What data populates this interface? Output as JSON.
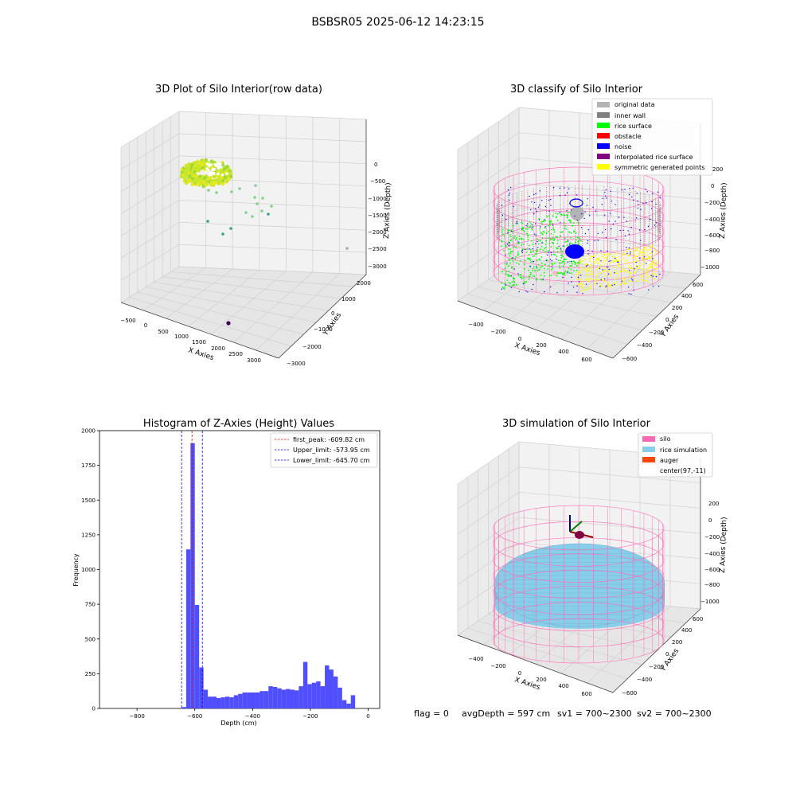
{
  "figure": {
    "suptitle": "BSBSR05 2025-06-12 14:23:15",
    "status_line": {
      "flag": "flag = 0",
      "avg_depth": "avgDepth = 597 cm",
      "sv1": "sv1 = 700~2300",
      "sv2": "sv2 = 700~2300"
    }
  },
  "colors": {
    "original": "#b3b3b3",
    "inner_wall": "#808080",
    "rice_surface": "#00ff00",
    "obstacle": "#ff0000",
    "noise": "#0000ff",
    "interpolated": "#800080",
    "symmetric": "#ffff00",
    "silo": "#ff69b4",
    "rice_sim": "#87ceeb",
    "auger": "#ff4500",
    "hist_bar": "#4f4fff"
  },
  "chart_data": [
    {
      "type": "scatter",
      "title": "3D Plot of Silo Interior(row data)",
      "xlabel": "X Axies",
      "ylabel": "Y Axies",
      "zlabel": "Z Axies (Depth)",
      "x_ticks": [
        "−500",
        "0",
        "500",
        "1000",
        "1500",
        "2000",
        "2500",
        "3000"
      ],
      "y_ticks": [
        "−3000",
        "−2000",
        "−1000",
        "0",
        "1000",
        "2000"
      ],
      "z_ticks": [
        "0",
        "−500",
        "−1000",
        "−1500",
        "−2000",
        "−2500",
        "−3000"
      ],
      "xlim": [
        -600,
        3300
      ],
      "ylim": [
        -3000,
        2500
      ],
      "zlim": [
        -3200,
        100
      ]
    },
    {
      "type": "scatter",
      "title": "3D classify of Silo Interior",
      "xlabel": "X Axies",
      "ylabel": "Y Axies",
      "zlabel": "Z Axies (Depth)",
      "x_ticks": [
        "−400",
        "−200",
        "0",
        "200",
        "400",
        "600"
      ],
      "y_ticks": [
        "−600",
        "−400",
        "−200",
        "0",
        "200",
        "400",
        "600"
      ],
      "z_ticks": [
        "200",
        "0",
        "−200",
        "−400",
        "−600",
        "−800",
        "−1000"
      ],
      "legend_position": "upper-right",
      "legend": [
        {
          "label": "original data",
          "color": "#b3b3b3"
        },
        {
          "label": "inner wall",
          "color": "#808080"
        },
        {
          "label": "rice surface",
          "color": "#00ff00"
        },
        {
          "label": "obstacle",
          "color": "#ff0000"
        },
        {
          "label": "noise",
          "color": "#0000ff"
        },
        {
          "label": "interpolated rice surface",
          "color": "#800080"
        },
        {
          "label": "symmetric generated points",
          "color": "#ffff00"
        }
      ]
    },
    {
      "type": "bar",
      "title": "Histogram of Z-Axies (Height) Values",
      "xlabel": "Depth (cm)",
      "ylabel": "Frequency",
      "xlim": [
        -930,
        40
      ],
      "ylim": [
        0,
        2000
      ],
      "x_ticks": [
        -800,
        -600,
        -400,
        -200,
        0
      ],
      "y_ticks": [
        0,
        250,
        500,
        750,
        1000,
        1250,
        1500,
        1750,
        2000
      ],
      "bin_width": 15,
      "bin_starts": [
        -645,
        -630,
        -615,
        -600,
        -585,
        -570,
        -555,
        -540,
        -525,
        -510,
        -495,
        -480,
        -465,
        -450,
        -435,
        -420,
        -405,
        -390,
        -375,
        -360,
        -345,
        -330,
        -315,
        -300,
        -285,
        -270,
        -255,
        -240,
        -225,
        -210,
        -195,
        -180,
        -165,
        -150,
        -135,
        -120,
        -105,
        -90,
        -75,
        -60,
        -45,
        -30,
        -15
      ],
      "values": [
        10,
        1145,
        1910,
        745,
        295,
        135,
        85,
        85,
        75,
        80,
        85,
        80,
        95,
        105,
        115,
        115,
        115,
        115,
        125,
        125,
        160,
        155,
        145,
        135,
        140,
        135,
        130,
        160,
        335,
        175,
        185,
        195,
        160,
        310,
        280,
        230,
        150,
        60,
        35,
        95,
        0,
        0,
        0
      ],
      "vlines": [
        {
          "x": -609.82,
          "color": "#ff0000",
          "label": "first_peak: -609.82 cm"
        },
        {
          "x": -573.95,
          "color": "#0000ff",
          "label": "Upper_limit: -573.95 cm"
        },
        {
          "x": -645.7,
          "color": "#0000ff",
          "label": "Lower_limit: -645.70 cm"
        }
      ],
      "legend_position": "upper-right"
    },
    {
      "type": "scatter",
      "title": "3D simulation of Silo Interior",
      "xlabel": "X Axies",
      "ylabel": "Y Axies",
      "zlabel": "Z Axies (Depth)",
      "x_ticks": [
        "−400",
        "−200",
        "0",
        "200",
        "400",
        "600"
      ],
      "y_ticks": [
        "−600",
        "−400",
        "−200",
        "0",
        "200",
        "400",
        "600"
      ],
      "z_ticks": [
        "200",
        "0",
        "−200",
        "−400",
        "−600",
        "−800",
        "−1000"
      ],
      "legend_position": "upper-right",
      "legend": [
        {
          "label": "silo",
          "color": "#ff69b4"
        },
        {
          "label": "rice simulation",
          "color": "#87ceeb"
        },
        {
          "label": "auger",
          "color": "#ff4500"
        },
        {
          "label": "center(97,-11)",
          "color": "#ffffff"
        }
      ]
    }
  ]
}
